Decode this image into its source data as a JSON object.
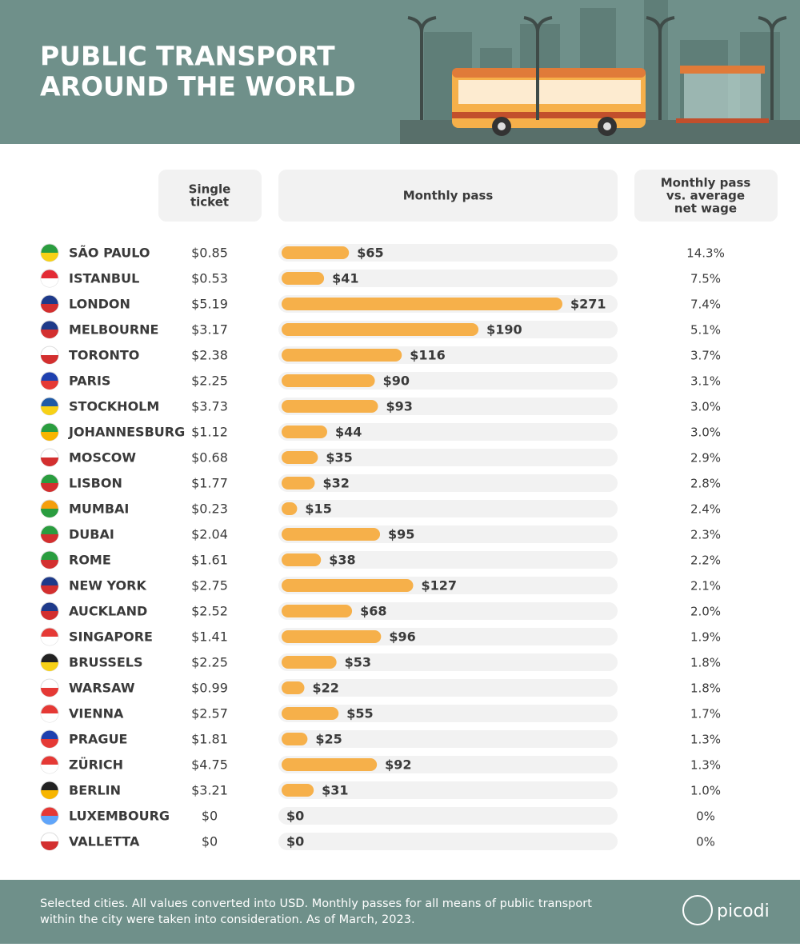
{
  "chart_data": {
    "type": "bar",
    "title_lines": [
      "PUBLIC TRANSPORT",
      "AROUND THE WORLD"
    ],
    "column_headers": [
      [
        "Single",
        "ticket"
      ],
      [
        "Monthly pass"
      ],
      [
        "Monthly pass",
        "vs. average",
        "net wage"
      ]
    ],
    "categories": [
      "SÃO PAULO",
      "ISTANBUL",
      "LONDON",
      "MELBOURNE",
      "TORONTO",
      "PARIS",
      "STOCKHOLM",
      "JOHANNESBURG",
      "MOSCOW",
      "LISBON",
      "MUMBAI",
      "DUBAI",
      "ROME",
      "NEW YORK",
      "AUCKLAND",
      "SINGAPORE",
      "BRUSSELS",
      "WARSAW",
      "VIENNA",
      "PRAGUE",
      "ZÜRICH",
      "BERLIN",
      "LUXEMBOURG",
      "VALLETTA"
    ],
    "single_ticket": [
      "$0.85",
      "$0.53",
      "$5.19",
      "$3.17",
      "$2.38",
      "$2.25",
      "$3.73",
      "$1.12",
      "$0.68",
      "$1.77",
      "$0.23",
      "$2.04",
      "$1.61",
      "$2.75",
      "$2.52",
      "$1.41",
      "$2.25",
      "$0.99",
      "$2.57",
      "$1.81",
      "$4.75",
      "$3.21",
      "$0",
      "$0"
    ],
    "values": [
      65,
      41,
      271,
      190,
      116,
      90,
      93,
      44,
      35,
      32,
      15,
      95,
      38,
      127,
      68,
      96,
      53,
      22,
      55,
      25,
      92,
      31,
      0,
      0
    ],
    "value_labels": [
      "$65",
      "$41",
      "$271",
      "$190",
      "$116",
      "$90",
      "$93",
      "$44",
      "$35",
      "$32",
      "$15",
      "$95",
      "$38",
      "$127",
      "$68",
      "$96",
      "$53",
      "$22",
      "$55",
      "$25",
      "$92",
      "$31",
      "$0",
      "$0"
    ],
    "wage_share": [
      "14.3%",
      "7.5%",
      "7.4%",
      "5.1%",
      "3.7%",
      "3.1%",
      "3.0%",
      "3.0%",
      "2.9%",
      "2.8%",
      "2.4%",
      "2.3%",
      "2.2%",
      "2.1%",
      "2.0%",
      "1.9%",
      "1.8%",
      "1.8%",
      "1.7%",
      "1.3%",
      "1.3%",
      "1.0%",
      "0%",
      "0%"
    ],
    "color": "#f6b04a",
    "footer_lines": [
      "Selected cities. All values converted into USD. Monthly passes for all means of public transport",
      "within the city were taken into consideration. As of March, 2023."
    ],
    "logo": "picodi"
  }
}
